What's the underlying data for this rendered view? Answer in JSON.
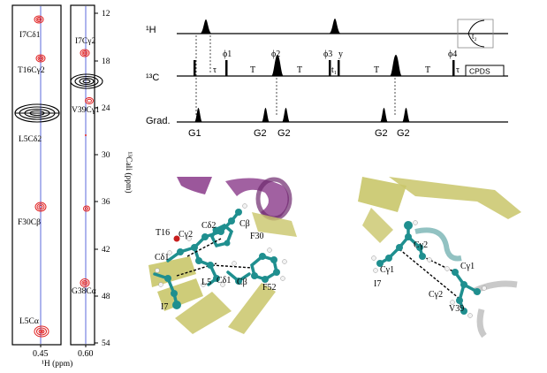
{
  "colors": {
    "peak_red": "#e02020",
    "peak_black": "#000000",
    "guide_blue": "#4a5ad8",
    "helix_purple": "#8a3a8a",
    "sheet_yellow": "#c9c66a",
    "atom_teal": "#1f8f8f",
    "atom_white": "#f2f2f2",
    "atom_red": "#c81e1e"
  },
  "spectrum_a": {
    "x_tick": "0.45",
    "peaks": [
      "I7Cδ1",
      "T16Cγ2",
      "L5Cδ2",
      "F30Cβ",
      "L5Cα"
    ]
  },
  "spectrum_b": {
    "x_tick": "0.60",
    "peaks": [
      "I7Cγ2",
      "V39Cγ1",
      "G38Cα"
    ]
  },
  "spectra_axes": {
    "xlabel": "¹H (ppm)",
    "ylabel": "¹³Cali (ppm)",
    "yticks": [
      "12",
      "18",
      "24",
      "30",
      "36",
      "42",
      "48",
      "54"
    ]
  },
  "pulse_sequence": {
    "channels": [
      "¹H",
      "¹³C",
      "Grad."
    ],
    "delays": [
      "τ",
      "T",
      "T",
      "t₁",
      "T",
      "T",
      "τ"
    ],
    "phases": [
      "ϕ1",
      "ϕ2",
      "ϕ3",
      "y",
      "ϕ4"
    ],
    "gradients": [
      "G1",
      "G2",
      "G2",
      "G2",
      "G2"
    ],
    "acq_label": "t₂",
    "decoupling": "CPDS"
  },
  "structure_left": {
    "labels": [
      "T16",
      "Cγ2",
      "Cδ2",
      "Cβ",
      "F30",
      "Cδ1",
      "L5",
      "Cδ1",
      "Cβ",
      "F52",
      "I7"
    ]
  },
  "structure_right": {
    "labels": [
      "Cγ2",
      "Cγ1",
      "Cγ1",
      "Cγ2",
      "I7",
      "V39"
    ]
  }
}
